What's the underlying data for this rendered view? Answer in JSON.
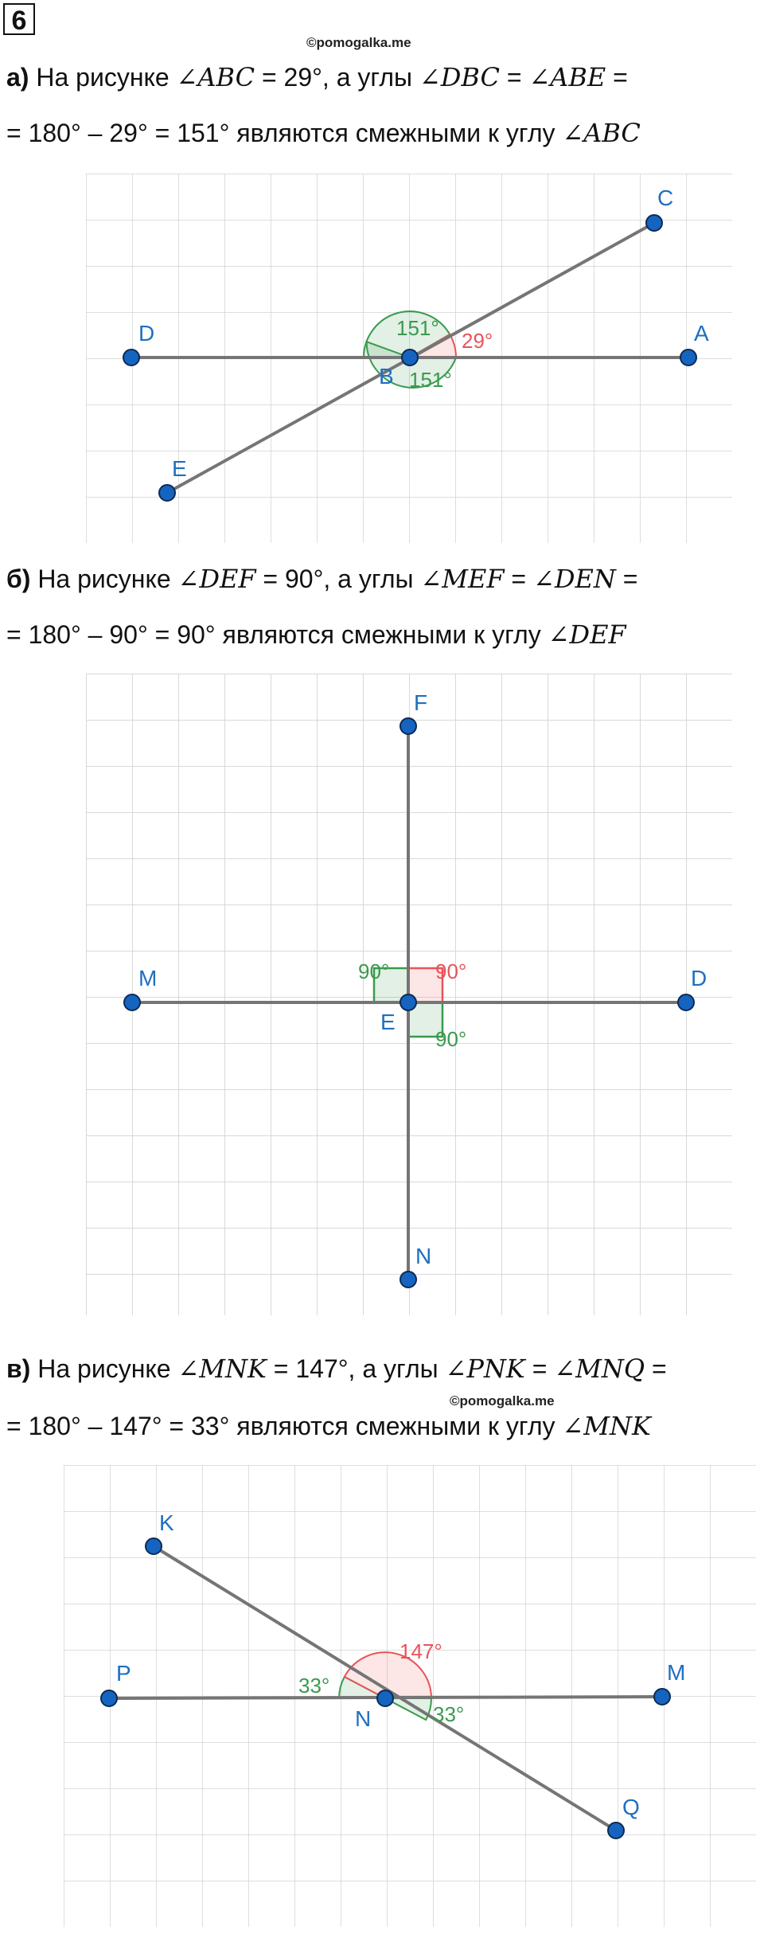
{
  "task_number": "6",
  "watermark": "©pomogalka.me",
  "parts": [
    {
      "prefix": "а)",
      "line1": [
        "На рисунке ",
        "∠ABC",
        " = 29°, а углы ",
        "∠DBC",
        " = ",
        "∠ABE",
        " ="
      ],
      "line2": [
        "= 180° – 29° = 151° являются смежными к углу ",
        "∠ABC"
      ],
      "figure": {
        "points": {
          "D": "D",
          "A": "A",
          "C": "C",
          "E": "E",
          "B": "B"
        },
        "angles": {
          "a1": "151°",
          "a2": "29°",
          "a3": "151°"
        }
      }
    },
    {
      "prefix": "б)",
      "line1": [
        "На рисунке ",
        "∠DEF",
        " = 90°, а углы ",
        "∠MEF",
        " = ",
        "∠DEN",
        " ="
      ],
      "line2": [
        "= 180° – 90° = 90° являются смежными к углу ",
        "∠DEF"
      ],
      "figure": {
        "points": {
          "F": "F",
          "M": "M",
          "D": "D",
          "E": "E",
          "N": "N"
        },
        "angles": {
          "a1": "90°",
          "a2": "90°",
          "a3": "90°"
        }
      }
    },
    {
      "prefix": "в)",
      "line1": [
        "На рисунке ",
        "∠MNK",
        " = 147°, а углы ",
        "∠PNK",
        " = ",
        "∠MNQ",
        " ="
      ],
      "line2": [
        "= 180° – 147° = 33° являются смежными к углу ",
        "∠MNK"
      ],
      "figure": {
        "points": {
          "K": "K",
          "P": "P",
          "M": "M",
          "N": "N",
          "Q": "Q"
        },
        "angles": {
          "a1": "33°",
          "a2": "147°",
          "a3": "33°"
        }
      }
    }
  ],
  "colors": {
    "green": "#3a9a4e",
    "red": "#e8545a",
    "blue_point": "#1565c0",
    "label_blue": "#1f6fc0"
  }
}
